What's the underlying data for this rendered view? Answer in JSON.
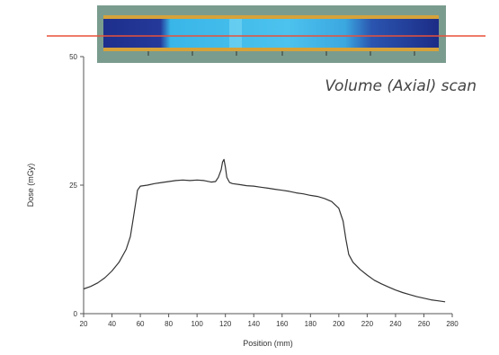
{
  "caption": "Volume (Axial) scan",
  "colors": {
    "film_frame": "#7a9c8e",
    "film_dark": "#1e2f8c",
    "film_light": "#39b6e8",
    "film_gold": "#d6a23a",
    "scan_line": "#e8513a",
    "curve": "#333333"
  },
  "chart_data": {
    "type": "line",
    "title": "",
    "xlabel": "Position (mm)",
    "ylabel": "Dose (mGy)",
    "xlim": [
      20,
      280
    ],
    "ylim": [
      0,
      50
    ],
    "x_ticks": [
      "20",
      "40",
      "60",
      "80",
      "100",
      "120",
      "140",
      "160",
      "180",
      "200",
      "220",
      "240",
      "260",
      "280"
    ],
    "y_ticks": [
      "0",
      "25",
      "50"
    ],
    "grid": false,
    "legend": "none",
    "series": [
      {
        "x": [
          20,
          25,
          30,
          35,
          40,
          45,
          50,
          53,
          55,
          57,
          58,
          60,
          65,
          70,
          75,
          80,
          85,
          90,
          95,
          100,
          105,
          110,
          113,
          115,
          117,
          118,
          119,
          120,
          121,
          123,
          125,
          130,
          135,
          140,
          145,
          150,
          155,
          160,
          165,
          170,
          175,
          180,
          185,
          190,
          195,
          200,
          203,
          205,
          207,
          210,
          215,
          220,
          225,
          230,
          235,
          240,
          245,
          250,
          255,
          260,
          265,
          270,
          275
        ],
        "y": [
          4.8,
          5.3,
          6.0,
          7.0,
          8.3,
          10.0,
          12.5,
          15.0,
          18.5,
          22.0,
          24.0,
          24.8,
          25.0,
          25.3,
          25.5,
          25.7,
          25.9,
          26.0,
          25.9,
          26.0,
          25.9,
          25.6,
          25.7,
          26.5,
          28.0,
          29.5,
          30.0,
          28.5,
          26.5,
          25.5,
          25.3,
          25.1,
          24.9,
          24.8,
          24.6,
          24.4,
          24.2,
          24.0,
          23.8,
          23.5,
          23.3,
          23.0,
          22.8,
          22.4,
          21.8,
          20.5,
          18.0,
          14.5,
          11.5,
          10.0,
          8.6,
          7.5,
          6.5,
          5.8,
          5.2,
          4.6,
          4.1,
          3.7,
          3.3,
          3.0,
          2.7,
          2.5,
          2.3
        ]
      }
    ]
  }
}
